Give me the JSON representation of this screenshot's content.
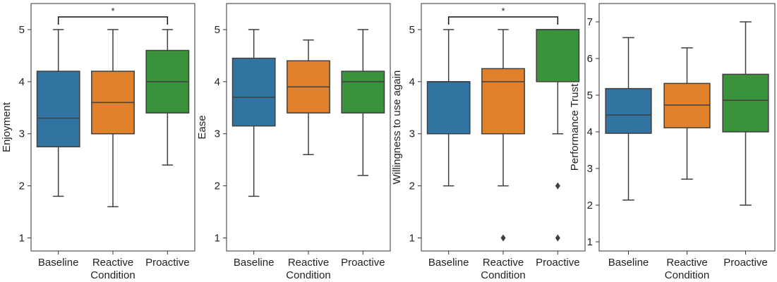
{
  "chart_data": [
    {
      "type": "box",
      "xlabel": "Condition",
      "ylabel": "Enjoyment",
      "categories": [
        "Baseline",
        "Reactive",
        "Proactive"
      ],
      "colors": [
        "#3274a1",
        "#e1812c",
        "#3a923a"
      ],
      "ylim": [
        0.75,
        5.5
      ],
      "yticks": [
        "1",
        "2",
        "3",
        "4",
        "5"
      ],
      "boxes": [
        {
          "category": "Baseline",
          "whisker_low": 1.8,
          "q1": 2.75,
          "median": 3.3,
          "q3": 4.2,
          "whisker_high": 5.0,
          "outliers": []
        },
        {
          "category": "Reactive",
          "whisker_low": 1.6,
          "q1": 3.0,
          "median": 3.6,
          "q3": 4.2,
          "whisker_high": 5.0,
          "outliers": []
        },
        {
          "category": "Proactive",
          "whisker_low": 2.4,
          "q1": 3.4,
          "median": 4.0,
          "q3": 4.6,
          "whisker_high": 5.0,
          "outliers": []
        }
      ],
      "significance": [
        {
          "from": "Baseline",
          "to": "Proactive",
          "label": "*"
        }
      ]
    },
    {
      "type": "box",
      "xlabel": "Condition",
      "ylabel": "Ease",
      "categories": [
        "Baseline",
        "Reactive",
        "Proactive"
      ],
      "colors": [
        "#3274a1",
        "#e1812c",
        "#3a923a"
      ],
      "ylim": [
        0.75,
        5.5
      ],
      "yticks": [
        "1",
        "2",
        "3",
        "4",
        "5"
      ],
      "boxes": [
        {
          "category": "Baseline",
          "whisker_low": 1.8,
          "q1": 3.15,
          "median": 3.7,
          "q3": 4.45,
          "whisker_high": 5.0,
          "outliers": []
        },
        {
          "category": "Reactive",
          "whisker_low": 2.6,
          "q1": 3.4,
          "median": 3.9,
          "q3": 4.4,
          "whisker_high": 4.8,
          "outliers": []
        },
        {
          "category": "Proactive",
          "whisker_low": 2.2,
          "q1": 3.4,
          "median": 4.0,
          "q3": 4.2,
          "whisker_high": 5.0,
          "outliers": []
        }
      ],
      "significance": []
    },
    {
      "type": "box",
      "xlabel": "Condition",
      "ylabel": "Willingness to use again",
      "categories": [
        "Baseline",
        "Reactive",
        "Proactive"
      ],
      "colors": [
        "#3274a1",
        "#e1812c",
        "#3a923a"
      ],
      "ylim": [
        0.75,
        5.5
      ],
      "yticks": [
        "1",
        "2",
        "3",
        "4",
        "5"
      ],
      "boxes": [
        {
          "category": "Baseline",
          "whisker_low": 2.0,
          "q1": 3.0,
          "median": 4.0,
          "q3": 4.0,
          "whisker_high": 5.0,
          "outliers": []
        },
        {
          "category": "Reactive",
          "whisker_low": 2.0,
          "q1": 3.0,
          "median": 4.0,
          "q3": 4.25,
          "whisker_high": 5.0,
          "outliers": [
            1.0
          ]
        },
        {
          "category": "Proactive",
          "whisker_low": 3.0,
          "q1": 4.0,
          "median": 5.0,
          "q3": 5.0,
          "whisker_high": 5.0,
          "outliers": [
            2.0,
            1.0
          ]
        }
      ],
      "significance": [
        {
          "from": "Baseline",
          "to": "Proactive",
          "label": "*"
        }
      ]
    },
    {
      "type": "box",
      "xlabel": "Condition",
      "ylabel": "Performance Trust",
      "categories": [
        "Baseline",
        "Reactive",
        "Proactive"
      ],
      "colors": [
        "#3274a1",
        "#e1812c",
        "#3a923a"
      ],
      "ylim": [
        0.75,
        7.5
      ],
      "yticks": [
        "1",
        "2",
        "3",
        "4",
        "5",
        "6",
        "7"
      ],
      "boxes": [
        {
          "category": "Baseline",
          "whisker_low": 2.14,
          "q1": 3.96,
          "median": 4.46,
          "q3": 5.18,
          "whisker_high": 6.57,
          "outliers": []
        },
        {
          "category": "Reactive",
          "whisker_low": 2.71,
          "q1": 4.11,
          "median": 4.73,
          "q3": 5.32,
          "whisker_high": 6.29,
          "outliers": []
        },
        {
          "category": "Proactive",
          "whisker_low": 2.0,
          "q1": 4.0,
          "median": 4.86,
          "q3": 5.57,
          "whisker_high": 7.0,
          "outliers": []
        }
      ],
      "significance": []
    }
  ]
}
